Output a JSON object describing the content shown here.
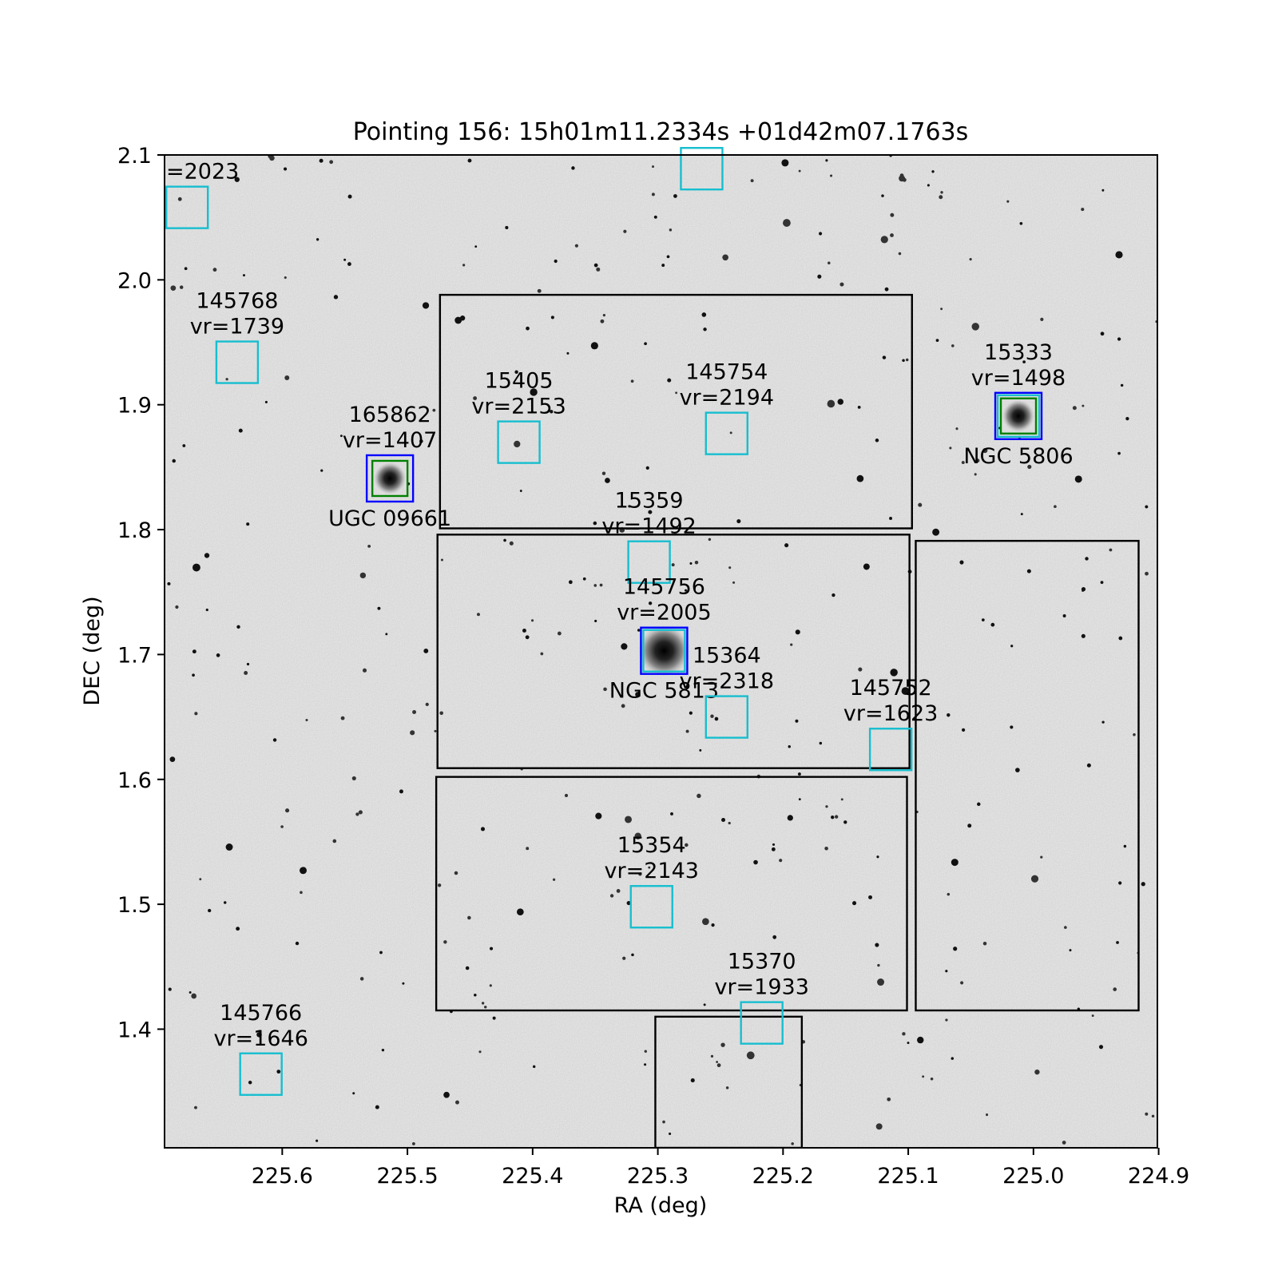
{
  "chart_data": {
    "type": "scatter",
    "title": "Pointing 156: 15h01m11.2334s +01d42m07.1763s",
    "xlabel": "RA (deg)",
    "ylabel": "DEC (deg)",
    "xlim": [
      225.694,
      224.901
    ],
    "ylim": [
      1.305,
      2.1
    ],
    "x_ticks": [
      {
        "value": 225.6,
        "label": "225.6"
      },
      {
        "value": 225.5,
        "label": "225.5"
      },
      {
        "value": 225.4,
        "label": "225.4"
      },
      {
        "value": 225.3,
        "label": "225.3"
      },
      {
        "value": 225.2,
        "label": "225.2"
      },
      {
        "value": 225.1,
        "label": "225.1"
      },
      {
        "value": 225.0,
        "label": "225.0"
      },
      {
        "value": 224.9,
        "label": "224.9"
      }
    ],
    "y_ticks": [
      {
        "value": 2.1,
        "label": "2.1"
      },
      {
        "value": 2.0,
        "label": "2.0"
      },
      {
        "value": 1.9,
        "label": "1.9"
      },
      {
        "value": 1.8,
        "label": "1.8"
      },
      {
        "value": 1.7,
        "label": "1.7"
      },
      {
        "value": 1.6,
        "label": "1.6"
      },
      {
        "value": 1.5,
        "label": "1.5"
      },
      {
        "value": 1.4,
        "label": "1.4"
      }
    ],
    "grid": false,
    "background": "grayscale sky image with stars",
    "colors": {
      "source_box": "#17becf",
      "match_outer": "#0000ff",
      "match_inner": "#008000",
      "footprint": "#000000"
    },
    "footprints": [
      {
        "ra_min": 225.097,
        "ra_max": 225.474,
        "dec_min": 1.801,
        "dec_max": 1.988
      },
      {
        "ra_min": 225.099,
        "ra_max": 225.476,
        "dec_min": 1.609,
        "dec_max": 1.796
      },
      {
        "ra_min": 225.101,
        "ra_max": 225.477,
        "dec_min": 1.415,
        "dec_max": 1.602
      },
      {
        "ra_min": 224.916,
        "ra_max": 225.094,
        "dec_min": 1.415,
        "dec_max": 1.791
      },
      {
        "ra_min": 225.185,
        "ra_max": 225.302,
        "dec_min": 1.305,
        "dec_max": 1.41
      }
    ],
    "sources": [
      {
        "ra": 225.676,
        "dec": 2.058,
        "label": "=2023",
        "boxes": [
          "source"
        ]
      },
      {
        "ra": 225.265,
        "dec": 2.089,
        "label": "",
        "boxes": [
          "source"
        ]
      },
      {
        "ra": 225.636,
        "dec": 1.934,
        "label": "145768\nvr=1739",
        "boxes": [
          "source"
        ]
      },
      {
        "ra": 225.411,
        "dec": 1.87,
        "label": "15405\nvr=2153",
        "boxes": [
          "source"
        ]
      },
      {
        "ra": 225.245,
        "dec": 1.877,
        "label": "145754\nvr=2194",
        "boxes": [
          "source"
        ]
      },
      {
        "ra": 225.012,
        "dec": 1.891,
        "label": "15333\nvr=1498",
        "boxes": [
          "source",
          "match_outer",
          "match_inner"
        ],
        "name": "NGC 5806"
      },
      {
        "ra": 225.514,
        "dec": 1.841,
        "label": "165862\nvr=1407",
        "boxes": [
          "match_outer",
          "match_inner"
        ],
        "name": "UGC 09661"
      },
      {
        "ra": 225.307,
        "dec": 1.774,
        "label": "15359\nvr=1492",
        "boxes": [
          "source"
        ]
      },
      {
        "ra": 225.295,
        "dec": 1.703,
        "label": "145756\nvr=2005",
        "boxes": [
          "match_outer",
          "source"
        ],
        "name": "NGC 5813"
      },
      {
        "ra": 225.245,
        "dec": 1.65,
        "label": "15364\nvr=2318",
        "boxes": [
          "source"
        ]
      },
      {
        "ra": 225.114,
        "dec": 1.624,
        "label": "145752\nvr=1623",
        "boxes": [
          "source"
        ]
      },
      {
        "ra": 225.305,
        "dec": 1.498,
        "label": "15354\nvr=2143",
        "boxes": [
          "source"
        ]
      },
      {
        "ra": 225.217,
        "dec": 1.405,
        "label": "15370\nvr=1933",
        "boxes": [
          "source"
        ]
      },
      {
        "ra": 225.617,
        "dec": 1.364,
        "label": "145766\nvr=1646",
        "boxes": [
          "source"
        ]
      }
    ]
  }
}
